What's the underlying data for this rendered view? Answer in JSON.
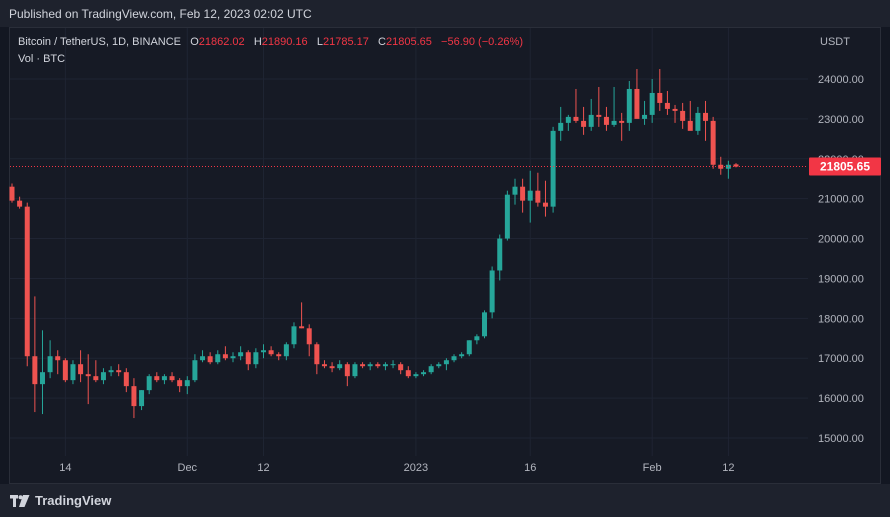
{
  "header": {
    "published": "Published on TradingView.com, Feb 12, 2023 02:02 UTC"
  },
  "legend": {
    "symbol": "Bitcoin / TetherUS, 1D, BINANCE",
    "o_label": "O",
    "o": "21862.02",
    "h_label": "H",
    "h": "21890.16",
    "l_label": "L",
    "l": "21785.17",
    "c_label": "C",
    "c": "21805.65",
    "change": "−56.90 (−0.26%)",
    "vol": "Vol · BTC"
  },
  "price_axis": {
    "unit": "USDT",
    "last_price_label": "21805.65"
  },
  "footer": {
    "brand": "TradingView"
  },
  "colors": {
    "up": "#26a69a",
    "down": "#ef5350",
    "background": "#131722",
    "grid": "#1f2433",
    "last_price": "#f23645"
  },
  "chart_data": {
    "type": "candlestick",
    "y_ticks": [
      "15000.00",
      "16000.00",
      "17000.00",
      "18000.00",
      "19000.00",
      "20000.00",
      "21000.00",
      "22000.00",
      "23000.00",
      "24000.00"
    ],
    "ylim": [
      14500,
      24800
    ],
    "x_ticks": [
      {
        "label": "14",
        "index": 7
      },
      {
        "label": "Dec",
        "index": 23
      },
      {
        "label": "12",
        "index": 33
      },
      {
        "label": "2023",
        "index": 53
      },
      {
        "label": "16",
        "index": 68
      },
      {
        "label": "Feb",
        "index": 84
      },
      {
        "label": "12",
        "index": 94
      }
    ],
    "last_price": 21805.65,
    "candles": [
      [
        21300,
        21380,
        20900,
        20950
      ],
      [
        20950,
        21050,
        20750,
        20800
      ],
      [
        20800,
        20900,
        16800,
        17050
      ],
      [
        17050,
        18550,
        15650,
        16350
      ],
      [
        16350,
        17700,
        15600,
        16650
      ],
      [
        16650,
        17450,
        16500,
        17050
      ],
      [
        17050,
        17200,
        16600,
        16950
      ],
      [
        16950,
        17000,
        16400,
        16450
      ],
      [
        16450,
        16950,
        16350,
        16850
      ],
      [
        16850,
        17200,
        16400,
        16600
      ],
      [
        16600,
        17100,
        15850,
        16550
      ],
      [
        16550,
        16950,
        16400,
        16450
      ],
      [
        16450,
        16750,
        16350,
        16650
      ],
      [
        16650,
        16800,
        16550,
        16700
      ],
      [
        16700,
        16850,
        16550,
        16650
      ],
      [
        16650,
        16750,
        16150,
        16300
      ],
      [
        16300,
        16500,
        15500,
        15800
      ],
      [
        15800,
        16200,
        15700,
        16200
      ],
      [
        16200,
        16600,
        16100,
        16550
      ],
      [
        16550,
        16650,
        16400,
        16450
      ],
      [
        16450,
        16600,
        16350,
        16550
      ],
      [
        16550,
        16650,
        16400,
        16450
      ],
      [
        16450,
        16500,
        16150,
        16300
      ],
      [
        16300,
        16550,
        16100,
        16450
      ],
      [
        16450,
        17100,
        16400,
        16950
      ],
      [
        16950,
        17200,
        16900,
        17050
      ],
      [
        17050,
        17150,
        16850,
        16900
      ],
      [
        16900,
        17200,
        16850,
        17100
      ],
      [
        17100,
        17300,
        16950,
        17000
      ],
      [
        17000,
        17150,
        16900,
        17050
      ],
      [
        17050,
        17300,
        16950,
        17150
      ],
      [
        17150,
        17200,
        16700,
        16850
      ],
      [
        16850,
        17250,
        16750,
        17150
      ],
      [
        17150,
        17350,
        17000,
        17200
      ],
      [
        17200,
        17300,
        17050,
        17100
      ],
      [
        17100,
        17150,
        16950,
        17050
      ],
      [
        17050,
        17400,
        16950,
        17350
      ],
      [
        17350,
        17900,
        17250,
        17800
      ],
      [
        17800,
        18400,
        17750,
        17750
      ],
      [
        17750,
        17850,
        17050,
        17350
      ],
      [
        17350,
        17400,
        16600,
        16850
      ],
      [
        16850,
        16950,
        16750,
        16800
      ],
      [
        16800,
        16900,
        16650,
        16750
      ],
      [
        16750,
        16950,
        16700,
        16850
      ],
      [
        16850,
        16900,
        16300,
        16550
      ],
      [
        16550,
        16900,
        16500,
        16850
      ],
      [
        16850,
        16900,
        16750,
        16800
      ],
      [
        16800,
        16900,
        16700,
        16850
      ],
      [
        16850,
        16900,
        16750,
        16800
      ],
      [
        16800,
        16900,
        16700,
        16850
      ],
      [
        16850,
        16950,
        16750,
        16850
      ],
      [
        16850,
        16900,
        16600,
        16700
      ],
      [
        16700,
        16800,
        16500,
        16550
      ],
      [
        16550,
        16650,
        16500,
        16600
      ],
      [
        16600,
        16700,
        16550,
        16650
      ],
      [
        16650,
        16850,
        16600,
        16800
      ],
      [
        16800,
        16900,
        16750,
        16850
      ],
      [
        16850,
        17000,
        16700,
        16950
      ],
      [
        16950,
        17100,
        16900,
        17050
      ],
      [
        17050,
        17150,
        17000,
        17100
      ],
      [
        17100,
        17450,
        17050,
        17450
      ],
      [
        17450,
        17600,
        17350,
        17550
      ],
      [
        17550,
        18200,
        17500,
        18150
      ],
      [
        18150,
        19300,
        18000,
        19200
      ],
      [
        19200,
        20100,
        18950,
        20000
      ],
      [
        20000,
        21200,
        19950,
        21100
      ],
      [
        21100,
        21500,
        20850,
        21300
      ],
      [
        21300,
        21500,
        20650,
        20950
      ],
      [
        20950,
        21700,
        20400,
        21200
      ],
      [
        21200,
        21650,
        20800,
        20900
      ],
      [
        20900,
        21450,
        20550,
        20800
      ],
      [
        20800,
        22800,
        20650,
        22700
      ],
      [
        22700,
        23300,
        22450,
        22900
      ],
      [
        22900,
        23100,
        22700,
        23050
      ],
      [
        23050,
        23750,
        22900,
        22950
      ],
      [
        22950,
        23300,
        22600,
        22800
      ],
      [
        22800,
        23500,
        22700,
        23100
      ],
      [
        23100,
        23800,
        22800,
        23050
      ],
      [
        23050,
        23300,
        22700,
        22850
      ],
      [
        22850,
        23800,
        22800,
        22950
      ],
      [
        22950,
        23150,
        22450,
        22900
      ],
      [
        22900,
        23950,
        22700,
        23750
      ],
      [
        23750,
        24250,
        23050,
        23000
      ],
      [
        23000,
        23450,
        22850,
        23100
      ],
      [
        23100,
        24000,
        22900,
        23650
      ],
      [
        23650,
        24250,
        23200,
        23400
      ],
      [
        23400,
        23700,
        23100,
        23250
      ],
      [
        23250,
        23350,
        22900,
        23200
      ],
      [
        23200,
        23400,
        22750,
        22950
      ],
      [
        22950,
        23450,
        22750,
        22700
      ],
      [
        22700,
        23300,
        22600,
        23150
      ],
      [
        23150,
        23450,
        22450,
        22950
      ],
      [
        22950,
        23050,
        21750,
        21850
      ],
      [
        21850,
        22050,
        21600,
        21750
      ],
      [
        21750,
        21950,
        21500,
        21850
      ],
      [
        21860,
        21890,
        21785,
        21805
      ]
    ]
  }
}
